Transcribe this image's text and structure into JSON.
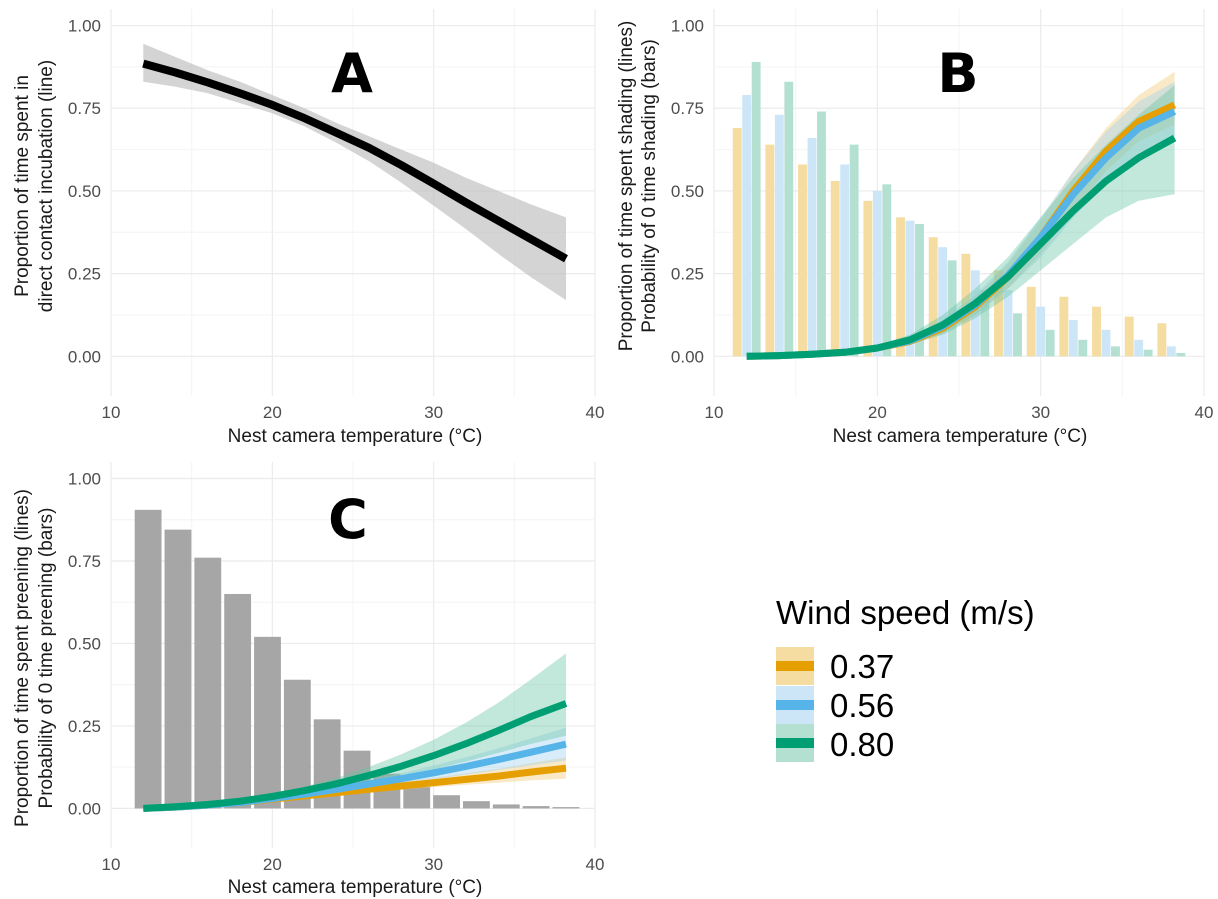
{
  "chart_data": [
    {
      "panel": "A",
      "type": "line",
      "xlabel": "Nest camera temperature (°C)",
      "ylabel": [
        "Proportion of time spent in",
        "direct contact incubation (line)"
      ],
      "xlim": [
        10,
        40
      ],
      "ylim": [
        -0.12,
        1.05
      ],
      "xticks": [
        10,
        20,
        30,
        40
      ],
      "yticks": [
        0.0,
        0.25,
        0.5,
        0.75,
        1.0
      ],
      "ytick_labels": [
        "0.00",
        "0.25",
        "0.50",
        "0.75",
        "1.00"
      ],
      "grid": true,
      "series": [
        {
          "color": "#000000",
          "band_color": "#bdbdbd",
          "x": [
            12,
            14,
            16,
            18,
            20,
            22,
            24,
            26,
            28,
            30,
            32,
            34,
            36,
            38.2
          ],
          "y": [
            0.885,
            0.858,
            0.828,
            0.795,
            0.76,
            0.72,
            0.675,
            0.63,
            0.578,
            0.522,
            0.465,
            0.41,
            0.355,
            0.295
          ],
          "lower": [
            0.83,
            0.815,
            0.795,
            0.765,
            0.735,
            0.695,
            0.645,
            0.59,
            0.525,
            0.455,
            0.385,
            0.31,
            0.24,
            0.17
          ],
          "upper": [
            0.945,
            0.905,
            0.865,
            0.83,
            0.79,
            0.75,
            0.705,
            0.665,
            0.625,
            0.585,
            0.54,
            0.5,
            0.46,
            0.42
          ]
        }
      ]
    },
    {
      "panel": "B",
      "type": "line+bar",
      "xlabel": "Nest camera temperature (°C)",
      "ylabel": [
        "Proportion of time spent shading (lines)",
        "Probability of 0 time shading (bars)"
      ],
      "xlim": [
        10,
        40
      ],
      "ylim": [
        -0.12,
        1.05
      ],
      "xticks": [
        10,
        20,
        30,
        40
      ],
      "yticks": [
        0.0,
        0.25,
        0.5,
        0.75,
        1.0
      ],
      "ytick_labels": [
        "0.00",
        "0.25",
        "0.50",
        "0.75",
        "1.00"
      ],
      "grid": true,
      "bar_x": [
        12,
        14,
        16,
        18,
        20,
        22,
        24,
        26,
        28,
        30,
        32,
        34,
        36,
        38
      ],
      "bar_groups": [
        {
          "color": "#f5dca0",
          "values": [
            0.69,
            0.64,
            0.58,
            0.53,
            0.47,
            0.42,
            0.36,
            0.31,
            0.26,
            0.21,
            0.18,
            0.15,
            0.12,
            0.1
          ]
        },
        {
          "color": "#cce6f7",
          "values": [
            0.79,
            0.73,
            0.66,
            0.58,
            0.5,
            0.41,
            0.33,
            0.26,
            0.2,
            0.15,
            0.11,
            0.08,
            0.05,
            0.03
          ]
        },
        {
          "color": "#b4e0d2",
          "values": [
            0.89,
            0.83,
            0.74,
            0.64,
            0.52,
            0.4,
            0.29,
            0.2,
            0.13,
            0.08,
            0.05,
            0.03,
            0.02,
            0.01
          ]
        }
      ],
      "series": [
        {
          "name": "0.37",
          "color": "#e69f00",
          "band_color": "#f0c870",
          "x": [
            12,
            14,
            16,
            18,
            20,
            22,
            24,
            26,
            28,
            30,
            32,
            34,
            36,
            38.2
          ],
          "y": [
            0.0,
            0.002,
            0.006,
            0.012,
            0.025,
            0.045,
            0.085,
            0.15,
            0.24,
            0.36,
            0.5,
            0.62,
            0.71,
            0.76
          ],
          "lower": [
            0.0,
            0.0,
            0.003,
            0.008,
            0.018,
            0.035,
            0.068,
            0.125,
            0.205,
            0.31,
            0.44,
            0.56,
            0.65,
            0.7
          ],
          "upper": [
            0.0,
            0.004,
            0.009,
            0.016,
            0.032,
            0.055,
            0.1,
            0.175,
            0.28,
            0.41,
            0.56,
            0.69,
            0.79,
            0.86
          ]
        },
        {
          "name": "0.56",
          "color": "#56b4e9",
          "band_color": "#9dd2f0",
          "x": [
            12,
            14,
            16,
            18,
            20,
            22,
            24,
            26,
            28,
            30,
            32,
            34,
            36,
            38.2
          ],
          "y": [
            0.0,
            0.002,
            0.006,
            0.012,
            0.025,
            0.047,
            0.09,
            0.155,
            0.245,
            0.36,
            0.49,
            0.6,
            0.69,
            0.74
          ],
          "lower": [
            0.0,
            0.0,
            0.003,
            0.008,
            0.018,
            0.036,
            0.07,
            0.125,
            0.205,
            0.3,
            0.42,
            0.52,
            0.61,
            0.66
          ],
          "upper": [
            0.0,
            0.004,
            0.009,
            0.016,
            0.032,
            0.058,
            0.11,
            0.185,
            0.285,
            0.42,
            0.56,
            0.68,
            0.77,
            0.83
          ]
        },
        {
          "name": "0.80",
          "color": "#009e73",
          "band_color": "#66c2a5",
          "x": [
            12,
            14,
            16,
            18,
            20,
            22,
            24,
            26,
            28,
            30,
            32,
            34,
            36,
            38.2
          ],
          "y": [
            0.0,
            0.002,
            0.006,
            0.012,
            0.025,
            0.05,
            0.095,
            0.16,
            0.24,
            0.34,
            0.44,
            0.53,
            0.6,
            0.66
          ],
          "lower": [
            0.0,
            0.0,
            0.003,
            0.008,
            0.016,
            0.035,
            0.065,
            0.115,
            0.18,
            0.26,
            0.34,
            0.42,
            0.47,
            0.49
          ],
          "upper": [
            0.0,
            0.004,
            0.009,
            0.016,
            0.034,
            0.065,
            0.125,
            0.205,
            0.3,
            0.42,
            0.54,
            0.64,
            0.73,
            0.82
          ]
        }
      ]
    },
    {
      "panel": "C",
      "type": "line+bar",
      "xlabel": "Nest camera temperature (°C)",
      "ylabel": [
        "Proportion of time spent preening (lines)",
        "Probability of 0 time preening (bars)"
      ],
      "xlim": [
        10,
        40
      ],
      "ylim": [
        -0.12,
        1.05
      ],
      "xticks": [
        10,
        20,
        30,
        40
      ],
      "yticks": [
        0.0,
        0.25,
        0.5,
        0.75,
        1.0
      ],
      "ytick_labels": [
        "0.00",
        "0.25",
        "0.50",
        "0.75",
        "1.00"
      ],
      "grid": true,
      "bar_x": [
        12.3,
        14.15,
        16.0,
        17.85,
        19.7,
        21.55,
        23.4,
        25.25,
        27.1,
        28.95,
        30.8,
        32.65,
        34.5,
        36.35,
        38.2
      ],
      "bar_groups": [
        {
          "color": "#a6a6a6",
          "values": [
            0.905,
            0.845,
            0.76,
            0.65,
            0.52,
            0.39,
            0.27,
            0.175,
            0.105,
            0.065,
            0.04,
            0.022,
            0.012,
            0.007,
            0.004
          ]
        }
      ],
      "series": [
        {
          "name": "0.37",
          "color": "#e69f00",
          "band_color": "#f0c870",
          "x": [
            12,
            14,
            16,
            18,
            20,
            22,
            24,
            26,
            28,
            30,
            32,
            34,
            36,
            38.2
          ],
          "y": [
            0.0,
            0.004,
            0.01,
            0.018,
            0.028,
            0.038,
            0.048,
            0.058,
            0.068,
            0.078,
            0.088,
            0.098,
            0.11,
            0.122
          ],
          "lower": [
            0.0,
            0.003,
            0.008,
            0.015,
            0.023,
            0.031,
            0.04,
            0.048,
            0.056,
            0.064,
            0.072,
            0.078,
            0.085,
            0.09
          ],
          "upper": [
            0.0,
            0.005,
            0.012,
            0.021,
            0.033,
            0.045,
            0.057,
            0.069,
            0.081,
            0.093,
            0.106,
            0.12,
            0.137,
            0.155
          ]
        },
        {
          "name": "0.56",
          "color": "#56b4e9",
          "band_color": "#9dd2f0",
          "x": [
            12,
            14,
            16,
            18,
            20,
            22,
            24,
            26,
            28,
            30,
            32,
            34,
            36,
            38.2
          ],
          "y": [
            0.0,
            0.004,
            0.01,
            0.018,
            0.03,
            0.043,
            0.058,
            0.074,
            0.09,
            0.108,
            0.127,
            0.148,
            0.17,
            0.195
          ],
          "lower": [
            0.0,
            0.003,
            0.008,
            0.015,
            0.025,
            0.036,
            0.049,
            0.062,
            0.075,
            0.088,
            0.102,
            0.116,
            0.13,
            0.145
          ],
          "upper": [
            0.0,
            0.005,
            0.012,
            0.021,
            0.035,
            0.05,
            0.067,
            0.086,
            0.107,
            0.13,
            0.155,
            0.182,
            0.212,
            0.245
          ]
        },
        {
          "name": "0.80",
          "color": "#009e73",
          "band_color": "#66c2a5",
          "x": [
            12,
            14,
            16,
            18,
            20,
            22,
            24,
            26,
            28,
            30,
            32,
            34,
            36,
            38.2
          ],
          "y": [
            0.0,
            0.005,
            0.012,
            0.022,
            0.036,
            0.054,
            0.075,
            0.1,
            0.128,
            0.16,
            0.196,
            0.236,
            0.278,
            0.318
          ],
          "lower": [
            0.0,
            0.004,
            0.009,
            0.017,
            0.028,
            0.042,
            0.058,
            0.076,
            0.096,
            0.118,
            0.142,
            0.168,
            0.195,
            0.22
          ],
          "upper": [
            0.0,
            0.006,
            0.015,
            0.027,
            0.044,
            0.066,
            0.093,
            0.126,
            0.164,
            0.208,
            0.26,
            0.32,
            0.39,
            0.47
          ]
        }
      ]
    }
  ],
  "legend": {
    "title": "Wind speed (m/s)",
    "items": [
      {
        "label": "0.37",
        "color": "#e69f00",
        "band_color": "#f5dca0"
      },
      {
        "label": "0.56",
        "color": "#56b4e9",
        "band_color": "#cce6f7"
      },
      {
        "label": "0.80",
        "color": "#009e73",
        "band_color": "#b4e0d2"
      }
    ]
  }
}
